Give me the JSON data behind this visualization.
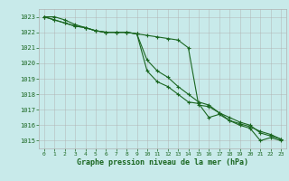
{
  "x": [
    0,
    1,
    2,
    3,
    4,
    5,
    6,
    7,
    8,
    9,
    10,
    11,
    12,
    13,
    14,
    15,
    16,
    17,
    18,
    19,
    20,
    21,
    22,
    23
  ],
  "line1": [
    1023.0,
    1023.0,
    1022.8,
    1022.5,
    1022.3,
    1022.1,
    1022.0,
    1022.0,
    1022.0,
    1021.9,
    1021.8,
    1021.7,
    1021.6,
    1021.5,
    1021.0,
    1017.3,
    1017.2,
    1016.8,
    1016.3,
    1016.0,
    1015.8,
    1015.0,
    1015.2,
    1015.0
  ],
  "line2": [
    1023.0,
    1022.8,
    1022.6,
    1022.4,
    1022.3,
    1022.1,
    1022.0,
    1022.0,
    1022.0,
    1021.9,
    1020.2,
    1019.5,
    1019.1,
    1018.5,
    1018.0,
    1017.5,
    1017.3,
    1016.8,
    1016.5,
    1016.2,
    1016.0,
    1015.5,
    1015.3,
    1015.1
  ],
  "line3": [
    1023.0,
    1022.8,
    1022.6,
    1022.4,
    1022.3,
    1022.1,
    1022.0,
    1022.0,
    1022.0,
    1021.9,
    1019.5,
    1018.8,
    1018.5,
    1018.0,
    1017.5,
    1017.4,
    1016.5,
    1016.7,
    1016.3,
    1016.1,
    1015.9,
    1015.6,
    1015.4,
    1015.1
  ],
  "background_color": "#c8eaea",
  "grid_color": "#b0b0b0",
  "line_color": "#1a6620",
  "ylabel_ticks": [
    1015,
    1016,
    1017,
    1018,
    1019,
    1020,
    1021,
    1022,
    1023
  ],
  "ylim": [
    1014.5,
    1023.5
  ],
  "xlim": [
    -0.5,
    23.5
  ],
  "xlabel": "Graphe pression niveau de la mer (hPa)",
  "xlabel_color": "#1a6620",
  "tick_color": "#1a6620",
  "font_family": "monospace"
}
